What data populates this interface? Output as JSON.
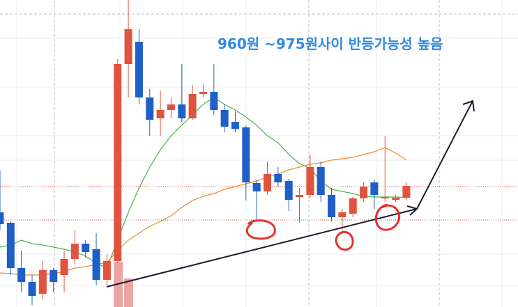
{
  "chart_data": {
    "type": "candlestick",
    "annotation": "960원 ~975원사이 반등가능성 높음",
    "ylim": [
      897.5,
      1118
    ],
    "up_color": "#e0533f",
    "down_color": "#1f5fc8",
    "open": [
      965.5,
      958,
      925.5,
      915.5,
      907,
      924,
      920.5,
      932,
      943,
      939,
      917,
      930.5,
      1072,
      1088,
      1048,
      1033,
      1039,
      1043,
      1033,
      1050.5,
      1052,
      1039,
      1030.5,
      1026.5,
      986.5,
      980.5,
      993,
      988,
      976.5,
      978,
      998,
      978,
      962,
      964.5,
      975.5,
      987,
      975.5,
      974.5,
      976
    ],
    "high": [
      995.5,
      959,
      938,
      920.5,
      930.5,
      925.5,
      938,
      953,
      945.5,
      950.5,
      935.5,
      1075.5,
      1118,
      1097,
      1054,
      1053,
      1048,
      1072,
      1057,
      1058,
      1072,
      1043,
      1038,
      1028,
      989,
      1002,
      998,
      989.5,
      983,
      1007,
      1002,
      983,
      968,
      977,
      987,
      989,
      1020.5,
      978,
      987
    ],
    "low": [
      953,
      920.5,
      908,
      899,
      903,
      908,
      908,
      928,
      933,
      913,
      913,
      929,
      1048,
      1043,
      1020.5,
      1020.5,
      1033,
      1030.5,
      1032,
      1048,
      1035.5,
      1023,
      1023,
      974,
      960.5,
      978,
      984,
      966.5,
      958,
      975.5,
      973,
      959,
      953,
      962,
      973,
      968,
      973,
      973,
      974
    ],
    "close": [
      957,
      925.5,
      915.5,
      905.5,
      924,
      915.5,
      932,
      943,
      937,
      917,
      930.5,
      1072,
      1097,
      1048,
      1032,
      1039,
      1043,
      1033,
      1050.5,
      1052,
      1039,
      1027,
      1025.5,
      987,
      980.5,
      993,
      987,
      974.5,
      978,
      998,
      978,
      962,
      965.5,
      975.5,
      984,
      978,
      976.5,
      976,
      984.5
    ],
    "overlays": [
      {
        "color": "#4caf50",
        "values": [
          940.5,
          942,
          945.5,
          943,
          942,
          940.5,
          939,
          937,
          934,
          929,
          925.5,
          945.5,
          965.5,
          983,
          998,
          1010.5,
          1020.5,
          1028,
          1035.5,
          1043,
          1048,
          1043,
          1039,
          1034,
          1028,
          1020.5,
          1015.5,
          1007,
          1000.5,
          997,
          988,
          982,
          980.5,
          979,
          977,
          976.5,
          976.5,
          976.5,
          976
        ]
      },
      {
        "color": "#f08a2c",
        "values": [
          922,
          921.5,
          920.5,
          920.5,
          920.5,
          921.5,
          923,
          925.5,
          926.5,
          928,
          929.5,
          938,
          945.5,
          950.5,
          955.5,
          959,
          963,
          969,
          974,
          977,
          979,
          982,
          984,
          986,
          988,
          991,
          993,
          996,
          998,
          1000,
          1001,
          1003,
          1004,
          1005,
          1007,
          1009,
          1012,
          1008,
          1003
        ]
      }
    ],
    "levels": [
      984,
      960
    ],
    "level_color": "#d9534f"
  }
}
